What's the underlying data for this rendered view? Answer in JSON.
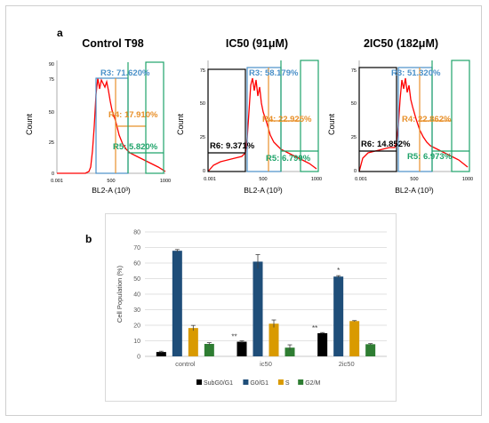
{
  "panel_a_label": "a",
  "panel_b_label": "b",
  "histograms": [
    {
      "title": "Control T98",
      "ylabel": "Count",
      "xlabel": "BL2-A (10³)",
      "x_ticks": [
        "0.001",
        "500",
        "1000"
      ],
      "y_ticks": [
        "90",
        "75",
        "50",
        "25",
        "0"
      ],
      "gates": [
        {
          "label": "R3: 71.620%",
          "color": "#4a90c8"
        },
        {
          "label": "R4: 17.910%",
          "color": "#e8902a"
        },
        {
          "label": "R5: 5.820%",
          "color": "#1fa36a"
        }
      ]
    },
    {
      "title": "IC50 (91μM)",
      "ylabel": "Count",
      "xlabel": "BL2-A (10³)",
      "x_ticks": [
        "0.001",
        "500",
        "1000"
      ],
      "y_ticks": [
        "75",
        "50",
        "25",
        "0"
      ],
      "gates": [
        {
          "label": "R6: 9.371%",
          "color": "#000000"
        },
        {
          "label": "R3: 58.179%",
          "color": "#4a90c8"
        },
        {
          "label": "R4: 22.925%",
          "color": "#e8902a"
        },
        {
          "label": "R5: 6.799%",
          "color": "#1fa36a"
        }
      ]
    },
    {
      "title": "2IC50 (182μM)",
      "ylabel": "Count",
      "xlabel": "BL2-A (10³)",
      "x_ticks": [
        "0.001",
        "500",
        "1000"
      ],
      "y_ticks": [
        "75",
        "50",
        "25",
        "0"
      ],
      "gates": [
        {
          "label": "R6: 14.852%",
          "color": "#000000"
        },
        {
          "label": "R3: 51.320%",
          "color": "#4a90c8"
        },
        {
          "label": "R4: 22.862%",
          "color": "#e8902a"
        },
        {
          "label": "R5: 6.973%",
          "color": "#1fa36a"
        }
      ]
    }
  ],
  "chart_data": {
    "type": "bar",
    "categories": [
      "control",
      "ic50",
      "2ic50"
    ],
    "series": [
      {
        "name": "SubG0/G1",
        "color": "#000000",
        "values": [
          2.8,
          9.4,
          14.9
        ],
        "errors": [
          0.5,
          0.6,
          0.4
        ]
      },
      {
        "name": "G0/G1",
        "color": "#1f4e79",
        "values": [
          67.9,
          60.9,
          51.3
        ],
        "errors": [
          0.8,
          4.5,
          0.6
        ]
      },
      {
        "name": "S",
        "color": "#d99a00",
        "values": [
          18.2,
          21.0,
          22.7
        ],
        "errors": [
          1.7,
          2.4,
          0.3
        ]
      },
      {
        "name": "G2/M",
        "color": "#2e7d32",
        "values": [
          8.0,
          5.6,
          7.8
        ],
        "errors": [
          0.8,
          1.8,
          0.4
        ]
      }
    ],
    "significance": [
      "",
      "**",
      "**"
    ],
    "g0g1_significance": [
      "",
      "",
      "*"
    ],
    "ylabel": "Cell Population (%)",
    "xlabel": "",
    "ylim": [
      0,
      80
    ],
    "yticks": [
      "0",
      "10",
      "20",
      "30",
      "40",
      "50",
      "60",
      "70",
      "80"
    ],
    "grid": true,
    "legend_position": "bottom"
  }
}
